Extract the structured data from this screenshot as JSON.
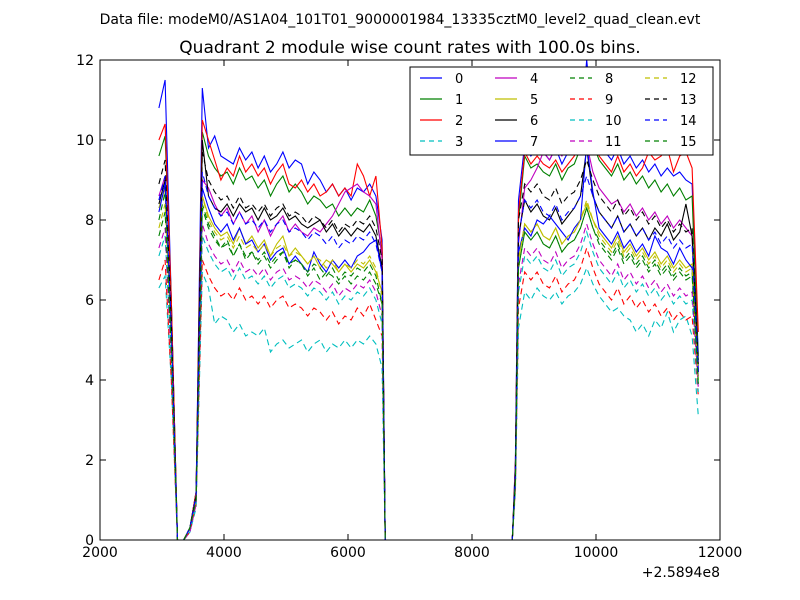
{
  "suptitle": "Data file: modeM0/AS1A04_101T01_9000001984_13335cztM0_level2_quad_clean.evt",
  "chart_data": {
    "type": "line",
    "title": "Quadrant 2 module wise count rates with 100.0s bins.",
    "xlabel": "",
    "ylabel": "",
    "x_offset_label": "+2.5894e8",
    "xlim": [
      2000,
      12000
    ],
    "ylim": [
      0,
      12
    ],
    "xticks": [
      2000,
      4000,
      6000,
      8000,
      10000,
      12000
    ],
    "yticks": [
      0,
      2,
      4,
      6,
      8,
      10,
      12
    ],
    "grid": false,
    "legend_position": "top-right",
    "legend_columns": 4,
    "x": [
      2950,
      3050,
      3150,
      3250,
      3350,
      3450,
      3550,
      3650,
      3750,
      3850,
      3950,
      4050,
      4150,
      4250,
      4350,
      4450,
      4550,
      4650,
      4750,
      4850,
      4950,
      5050,
      5150,
      5250,
      5350,
      5450,
      5550,
      5650,
      5750,
      5850,
      5950,
      6050,
      6150,
      6250,
      6350,
      6450,
      6550,
      6600,
      8650,
      8700,
      8750,
      8850,
      8950,
      9050,
      9150,
      9250,
      9350,
      9450,
      9550,
      9650,
      9750,
      9850,
      9950,
      10050,
      10150,
      10250,
      10350,
      10450,
      10550,
      10650,
      10750,
      10850,
      10950,
      11050,
      11150,
      11250,
      11350,
      11450,
      11550,
      11650
    ],
    "series": [
      {
        "name": "0",
        "color": "#0000ff",
        "dash": "solid",
        "values": [
          10.8,
          11.5,
          6,
          0,
          0,
          0.3,
          1.2,
          11.3,
          9.8,
          10.1,
          9.6,
          9.5,
          9.4,
          9.8,
          9.5,
          9.7,
          9.3,
          9.6,
          9.2,
          9.4,
          9.7,
          9.3,
          9.5,
          9.4,
          8.9,
          9.2,
          9,
          8.7,
          8.9,
          8.6,
          8.8,
          8.5,
          8.8,
          8.7,
          8.9,
          8.6,
          7.5,
          0,
          0,
          2,
          8.5,
          9.9,
          9.6,
          9.8,
          9.7,
          9.5,
          9.8,
          9.4,
          9.7,
          9.8,
          10.2,
          12,
          10.4,
          9.9,
          9.7,
          9.5,
          9.8,
          9.4,
          9.6,
          9.3,
          9.5,
          9.2,
          9.4,
          9.1,
          9.3,
          9.1,
          9.2,
          9,
          8.9,
          4.6
        ]
      },
      {
        "name": "1",
        "color": "#008000",
        "dash": "solid",
        "values": [
          9.6,
          10.1,
          6,
          0,
          0,
          0.3,
          1.2,
          10.2,
          9.6,
          9.3,
          9.1,
          9.2,
          8.9,
          9.3,
          9,
          9.1,
          8.8,
          9,
          8.6,
          8.9,
          9.1,
          8.7,
          8.9,
          8.7,
          8.4,
          8.6,
          8.5,
          8.3,
          8.4,
          8.1,
          8.3,
          8.1,
          8.3,
          8.2,
          8.5,
          8.1,
          7.2,
          0,
          0,
          1.8,
          8,
          9.6,
          9.3,
          9.4,
          9.2,
          9.1,
          9.4,
          9,
          9.3,
          9.4,
          9.8,
          10.3,
          9.9,
          9.5,
          9.3,
          9.1,
          9.4,
          9,
          9.2,
          8.9,
          9.1,
          8.8,
          9,
          8.7,
          8.9,
          8.6,
          8.8,
          8.5,
          8.6,
          4.5
        ]
      },
      {
        "name": "2",
        "color": "#ff0000",
        "dash": "solid",
        "values": [
          10,
          10.4,
          6,
          0,
          0,
          0.3,
          1.2,
          10.5,
          10,
          9.5,
          9,
          9.3,
          9.1,
          9.6,
          9.2,
          9.4,
          9.1,
          9.3,
          8.9,
          9.2,
          9.4,
          8.9,
          8.8,
          9,
          8.7,
          8.9,
          8.6,
          8.7,
          8.9,
          8.6,
          8.8,
          8.6,
          9.4,
          9.1,
          8.6,
          9.1,
          7.3,
          0,
          0,
          1.9,
          8.2,
          9.7,
          9.4,
          9.6,
          9.4,
          9.3,
          9.5,
          9.2,
          9.4,
          9.6,
          10,
          11.5,
          10,
          9.6,
          9.4,
          9.2,
          9.6,
          9.2,
          9.4,
          9.1,
          9.3,
          9.7,
          9.5,
          9.6,
          9.8,
          9.2,
          9.6,
          9.7,
          9.3,
          5.2
        ]
      },
      {
        "name": "3",
        "color": "#00bfbf",
        "dash": "dashed",
        "values": [
          6.3,
          6.6,
          4,
          0,
          0,
          0.2,
          0.8,
          6.7,
          6.3,
          5.4,
          5.6,
          5.5,
          5.2,
          5.4,
          5.1,
          5.2,
          5.1,
          5.3,
          4.7,
          4.9,
          5,
          4.8,
          4.9,
          5,
          4.7,
          4.9,
          5,
          4.7,
          4.9,
          4.8,
          5,
          4.8,
          5,
          4.9,
          5.1,
          4.9,
          4.3,
          0,
          0,
          1.2,
          5.3,
          6.2,
          6,
          6.3,
          6.1,
          6,
          6.2,
          5.9,
          6.1,
          6.2,
          6.4,
          6.8,
          6.4,
          6.1,
          5.9,
          5.7,
          5.8,
          5.6,
          5.5,
          5.2,
          5.4,
          5.1,
          5.5,
          5.3,
          5.7,
          5.2,
          5.5,
          5.6,
          5.1,
          3.1
        ]
      },
      {
        "name": "4",
        "color": "#bf00bf",
        "dash": "solid",
        "values": [
          8.6,
          9.1,
          5,
          0,
          0,
          0.3,
          1.1,
          9,
          8.8,
          8.4,
          8.1,
          8.3,
          7.9,
          8.2,
          7.9,
          8.1,
          7.7,
          8,
          7.6,
          7.9,
          8.1,
          7.7,
          7.9,
          7.7,
          7.6,
          7.8,
          7.7,
          7.9,
          8.1,
          8.4,
          8.7,
          8.8,
          8.9,
          8.7,
          8.6,
          8.4,
          7,
          0,
          0,
          1.7,
          7.4,
          8.8,
          9,
          9.3,
          9.7,
          9.5,
          9.8,
          9.6,
          9.9,
          9.8,
          10,
          9.9,
          9.2,
          8.8,
          8.6,
          8.4,
          8.5,
          8.2,
          8.4,
          8.1,
          8.3,
          8,
          8.2,
          7.9,
          8.1,
          7.8,
          8,
          7.8,
          7.6,
          4.2
        ]
      },
      {
        "name": "5",
        "color": "#bfbf00",
        "dash": "solid",
        "values": [
          8.3,
          8.8,
          5,
          0,
          0,
          0.3,
          1,
          8.6,
          8.1,
          7.8,
          7.6,
          7.7,
          7.4,
          7.8,
          7.4,
          7.6,
          7.3,
          7.5,
          7.1,
          7.4,
          7.6,
          7.1,
          7.3,
          7.1,
          6.9,
          7.1,
          6.8,
          7,
          6.9,
          6.7,
          6.9,
          6.7,
          6.9,
          6.8,
          7,
          6.7,
          6.2,
          0,
          0,
          1.6,
          7,
          7.9,
          7.7,
          7.9,
          7.6,
          7.5,
          7.8,
          7.4,
          7.6,
          7.7,
          8,
          8.4,
          8,
          7.7,
          7.5,
          7.3,
          7.6,
          7.2,
          7.4,
          7.1,
          7.3,
          7,
          7.2,
          6.9,
          7.1,
          6.8,
          7,
          6.8,
          6.9,
          4
        ]
      },
      {
        "name": "6",
        "color": "#000000",
        "dash": "solid",
        "values": [
          8.4,
          9,
          5,
          0,
          0,
          0.3,
          1.1,
          10,
          8.6,
          8.3,
          8.2,
          8.4,
          8.1,
          8.4,
          8.2,
          8.3,
          8,
          8.3,
          8,
          8.1,
          8.3,
          8,
          8.1,
          7.9,
          7.8,
          7.9,
          8,
          7.7,
          7.9,
          7.6,
          7.8,
          7.6,
          7.8,
          7.7,
          7.9,
          7.6,
          6.8,
          0,
          0,
          1.7,
          7.6,
          8.5,
          8.2,
          8.4,
          8.1,
          8,
          8.3,
          7.9,
          8.1,
          8.3,
          8.6,
          9.8,
          8.6,
          8.2,
          8,
          7.8,
          8.1,
          7.7,
          7.9,
          7.6,
          7.8,
          7.5,
          7.8,
          7.6,
          7.9,
          7.5,
          7.7,
          8.4,
          7.6,
          4.2
        ]
      },
      {
        "name": "7",
        "color": "#0000ff",
        "dash": "solid",
        "values": [
          8.2,
          8.9,
          5,
          0,
          0,
          0.3,
          1.1,
          8.8,
          8.3,
          7.9,
          7.7,
          7.9,
          7.5,
          7.8,
          7.4,
          7.5,
          7.2,
          7.4,
          7,
          7.2,
          7.3,
          6.9,
          7.1,
          6.9,
          6.7,
          7.2,
          6.9,
          6.7,
          7,
          6.8,
          7,
          6.8,
          7.1,
          7.2,
          7.4,
          7.5,
          6.7,
          0,
          0,
          1.6,
          7.2,
          7.8,
          7.6,
          8,
          7.9,
          8.1,
          7.9,
          7.7,
          7.5,
          7.8,
          8,
          9.9,
          8.7,
          7.8,
          7.6,
          7.4,
          7.7,
          7.3,
          7.5,
          7.2,
          7.4,
          7.1,
          7.6,
          7.3,
          7.2,
          6.9,
          7.3,
          7,
          6.8,
          4.1
        ]
      },
      {
        "name": "8",
        "color": "#008000",
        "dash": "dashed",
        "values": [
          8,
          8.7,
          5,
          0,
          0,
          0.3,
          1,
          8.4,
          7.9,
          7.6,
          7.3,
          7.5,
          7.1,
          7.4,
          7,
          7.2,
          6.9,
          7.1,
          6.8,
          7,
          7.2,
          6.8,
          7,
          6.9,
          6.6,
          6.8,
          6.5,
          6.7,
          6.6,
          6.4,
          6.6,
          6.4,
          6.6,
          6.5,
          6.7,
          6.4,
          5.9,
          0,
          0,
          1.5,
          6.8,
          7.7,
          7.5,
          7.7,
          7.4,
          7.3,
          7.6,
          7.2,
          7.4,
          7.5,
          7.8,
          8.3,
          7.8,
          7.5,
          7.3,
          7.1,
          7.4,
          7,
          7.2,
          6.9,
          7.1,
          6.8,
          7,
          6.7,
          6.9,
          6.6,
          6.8,
          6.6,
          6.7,
          3.9
        ]
      },
      {
        "name": "9",
        "color": "#ff0000",
        "dash": "dashed",
        "values": [
          6.5,
          7,
          4,
          0,
          0,
          0.2,
          0.9,
          7,
          6.6,
          6.3,
          6.1,
          6.2,
          6,
          6.3,
          6,
          6.1,
          5.9,
          6.1,
          5.8,
          6,
          6.1,
          5.8,
          5.9,
          5.8,
          5.6,
          5.8,
          5.7,
          5.5,
          5.7,
          5.4,
          5.6,
          5.5,
          5.8,
          5.6,
          5.9,
          5.5,
          5.1,
          0,
          0,
          1.3,
          5.8,
          6.7,
          6.5,
          6.7,
          6.4,
          6.3,
          6.6,
          6.2,
          6.4,
          6.5,
          6.8,
          7.3,
          6.8,
          6.4,
          6.2,
          6,
          6.3,
          5.9,
          6.1,
          5.8,
          6,
          5.7,
          5.9,
          5.6,
          5.8,
          5.5,
          5.7,
          5.5,
          5.6,
          3.6
        ]
      },
      {
        "name": "10",
        "color": "#00bfbf",
        "dash": "dashed",
        "values": [
          7.1,
          7.6,
          4.5,
          0,
          0,
          0.2,
          0.9,
          7.6,
          7.2,
          6.9,
          6.7,
          6.8,
          6.5,
          6.8,
          6.5,
          6.6,
          6.4,
          6.6,
          6.3,
          6.5,
          6.6,
          6.3,
          6.4,
          6.3,
          6.1,
          6.3,
          6.2,
          6,
          6.2,
          5.9,
          6.1,
          6,
          6.2,
          6.1,
          6.3,
          6,
          5.4,
          0,
          0,
          1.4,
          6.2,
          7.1,
          6.9,
          7.1,
          6.8,
          6.7,
          7,
          6.6,
          6.8,
          6.9,
          7.2,
          7.7,
          7.2,
          6.8,
          6.6,
          6.4,
          6.7,
          6.3,
          6.5,
          6.2,
          6.4,
          6.1,
          6.3,
          6,
          6.2,
          5.9,
          6.1,
          5.9,
          6,
          3.7
        ]
      },
      {
        "name": "11",
        "color": "#bf00bf",
        "dash": "dashed",
        "values": [
          7.3,
          7.8,
          4.5,
          0,
          0,
          0.2,
          0.9,
          7.9,
          7.4,
          7.1,
          6.9,
          7,
          6.7,
          7,
          6.7,
          6.8,
          6.6,
          6.8,
          6.5,
          6.7,
          6.8,
          6.5,
          6.6,
          6.5,
          6.3,
          6.5,
          6.4,
          6.2,
          6.4,
          6.1,
          6.3,
          6.2,
          6.4,
          6.3,
          6.5,
          6.2,
          5.6,
          0,
          0,
          1.4,
          6.4,
          7.3,
          7.1,
          7.3,
          7,
          6.9,
          7.2,
          6.8,
          7,
          7.1,
          7.4,
          7.9,
          7.4,
          7,
          6.8,
          6.6,
          6.9,
          6.5,
          6.7,
          6.4,
          6.6,
          6.3,
          6.5,
          6.2,
          6.4,
          6.1,
          6.3,
          6.1,
          6.2,
          3.8
        ]
      },
      {
        "name": "12",
        "color": "#bfbf00",
        "dash": "dashed",
        "values": [
          7.8,
          8.4,
          5,
          0,
          0,
          0.3,
          1,
          8.6,
          8,
          7.7,
          7.5,
          7.6,
          7.3,
          7.6,
          7.3,
          7.4,
          7.2,
          7.4,
          7.1,
          7.3,
          7.4,
          7.1,
          7.2,
          7.1,
          6.9,
          7.1,
          7,
          6.8,
          7,
          6.7,
          6.9,
          6.8,
          7,
          6.9,
          7.1,
          6.8,
          6.1,
          0,
          0,
          1.5,
          7,
          7.9,
          7.7,
          7.9,
          7.6,
          7.5,
          7.8,
          7.4,
          7.6,
          7.7,
          8,
          8.5,
          8,
          7.6,
          7.4,
          7.2,
          7.5,
          7.1,
          7.3,
          7,
          7.2,
          6.9,
          7.1,
          6.8,
          7,
          6.7,
          6.9,
          6.7,
          6.8,
          4
        ]
      },
      {
        "name": "13",
        "color": "#000000",
        "dash": "dashed",
        "values": [
          8.9,
          9.5,
          5.5,
          0,
          0,
          0.3,
          1.1,
          9.7,
          9,
          8.7,
          8.5,
          8.6,
          8.3,
          8.6,
          8.3,
          8.4,
          8.2,
          8.4,
          8.1,
          8.3,
          8.4,
          8.1,
          8.2,
          8.1,
          7.9,
          8.1,
          8,
          7.8,
          8,
          7.7,
          7.9,
          7.8,
          8,
          7.9,
          8.1,
          7.8,
          7,
          0,
          0,
          1.7,
          8,
          8.9,
          8.7,
          8.9,
          8.6,
          8.5,
          8.8,
          8.4,
          8.6,
          8.7,
          9,
          9.5,
          9,
          8.6,
          8.4,
          8.2,
          8.5,
          8.1,
          8.3,
          8,
          8.2,
          7.9,
          8.1,
          7.8,
          8,
          7.7,
          7.9,
          7.7,
          7.8,
          4.4
        ]
      },
      {
        "name": "14",
        "color": "#0000ff",
        "dash": "dashed",
        "values": [
          8.5,
          9.1,
          5.3,
          0,
          0,
          0.3,
          1.1,
          9.2,
          8.6,
          8.3,
          8.1,
          8.2,
          7.9,
          8.2,
          7.9,
          8,
          7.8,
          8,
          7.7,
          7.9,
          8,
          7.7,
          7.8,
          7.7,
          7.5,
          7.7,
          7.6,
          7.4,
          7.6,
          7.3,
          7.5,
          7.4,
          7.6,
          7.5,
          7.7,
          7.4,
          6.7,
          0,
          0,
          1.6,
          7.6,
          8.5,
          8.3,
          8.5,
          8.2,
          8.1,
          8.4,
          8,
          8.2,
          8.3,
          8.6,
          9.1,
          8.6,
          8.2,
          8,
          7.8,
          8.1,
          7.7,
          7.9,
          7.6,
          7.8,
          7.5,
          7.7,
          7.4,
          7.6,
          7.3,
          7.5,
          7.3,
          7.4,
          4.2
        ]
      },
      {
        "name": "15",
        "color": "#008000",
        "dash": "dashed",
        "values": [
          7.6,
          8.2,
          4.8,
          0,
          0,
          0.3,
          1,
          8.3,
          7.8,
          7.5,
          7.3,
          7.4,
          7.1,
          7.4,
          7.1,
          7.2,
          7,
          7.2,
          6.9,
          7.1,
          7.2,
          6.9,
          7,
          6.9,
          6.7,
          6.9,
          6.8,
          6.6,
          6.8,
          6.5,
          6.7,
          6.6,
          6.8,
          6.7,
          6.9,
          6.6,
          5.9,
          0,
          0,
          1.5,
          6.8,
          7.7,
          7.5,
          7.7,
          7.4,
          7.3,
          7.6,
          7.2,
          7.4,
          7.5,
          7.8,
          8.3,
          7.8,
          7.4,
          7.2,
          7,
          7.3,
          6.9,
          7.1,
          6.8,
          7,
          6.7,
          6.9,
          6.6,
          6.8,
          6.5,
          6.7,
          6.5,
          6.6,
          3.9
        ]
      }
    ]
  }
}
